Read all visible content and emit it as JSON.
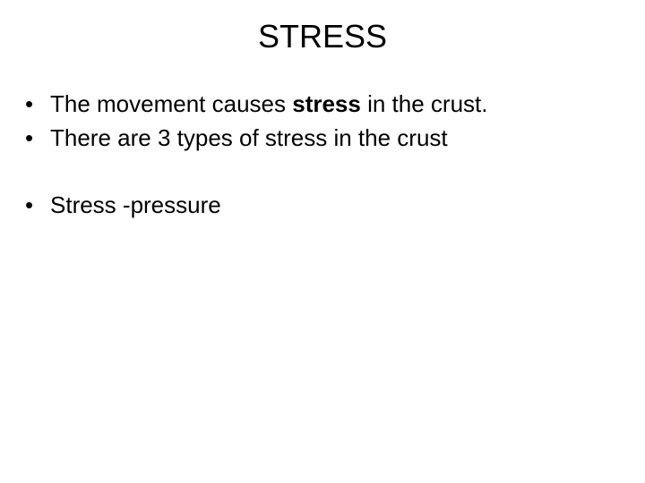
{
  "slide": {
    "title": "STRESS",
    "bullets": [
      {
        "prefix": "The movement causes ",
        "bold": "stress ",
        "suffix": "in the crust."
      },
      {
        "text": "There are 3 types of stress in the crust"
      },
      {
        "text": "Stress -pressure"
      }
    ]
  },
  "style": {
    "background_color": "#ffffff",
    "text_color": "#000000",
    "title_fontsize": 36,
    "body_fontsize": 26,
    "font_family": "Arial"
  }
}
